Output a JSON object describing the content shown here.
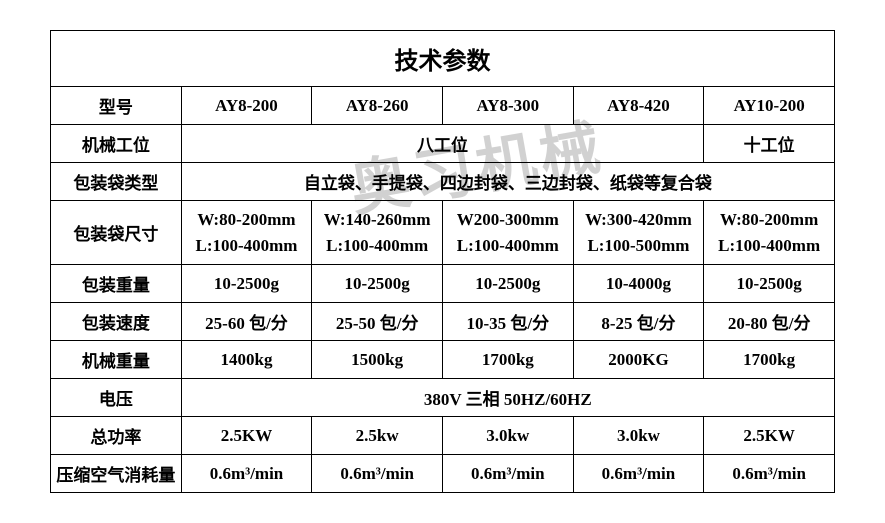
{
  "title": "技术参数",
  "watermark": "奥习机械",
  "labels": {
    "model": "型号",
    "stations": "机械工位",
    "bag_type": "包装袋类型",
    "bag_size": "包装袋尺寸",
    "pack_weight": "包装重量",
    "pack_speed": "包装速度",
    "machine_weight": "机械重量",
    "voltage": "电压",
    "power": "总功率",
    "air": "压缩空气消耗量"
  },
  "models": [
    "AY8-200",
    "AY8-260",
    "AY8-300",
    "AY8-420",
    "AY10-200"
  ],
  "stations": {
    "first4": "八工位",
    "last": "十工位"
  },
  "bag_type_all": "自立袋、手提袋、四边封袋、三边封袋、纸袋等复合袋",
  "bag_size": [
    {
      "w": "W:80-200mm",
      "l": "L:100-400mm"
    },
    {
      "w": "W:140-260mm",
      "l": "L:100-400mm"
    },
    {
      "w": "W200-300mm",
      "l": "L:100-400mm"
    },
    {
      "w": "W:300-420mm",
      "l": "L:100-500mm"
    },
    {
      "w": "W:80-200mm",
      "l": "L:100-400mm"
    }
  ],
  "pack_weight": [
    "10-2500g",
    "10-2500g",
    "10-2500g",
    "10-4000g",
    "10-2500g"
  ],
  "pack_speed": [
    "25-60 包/分",
    "25-50 包/分",
    "10-35 包/分",
    "8-25 包/分",
    "20-80 包/分"
  ],
  "machine_weight": [
    "1400kg",
    "1500kg",
    "1700kg",
    "2000KG",
    "1700kg"
  ],
  "voltage_all": "380V 三相 50HZ/60HZ",
  "power": [
    "2.5KW",
    "2.5kw",
    "3.0kw",
    "3.0kw",
    "2.5KW"
  ],
  "air_val": "0.6m³/min",
  "colors": {
    "border": "#000000",
    "text": "#000000",
    "bg": "#ffffff",
    "watermark": "rgba(0,0,0,0.18)"
  }
}
